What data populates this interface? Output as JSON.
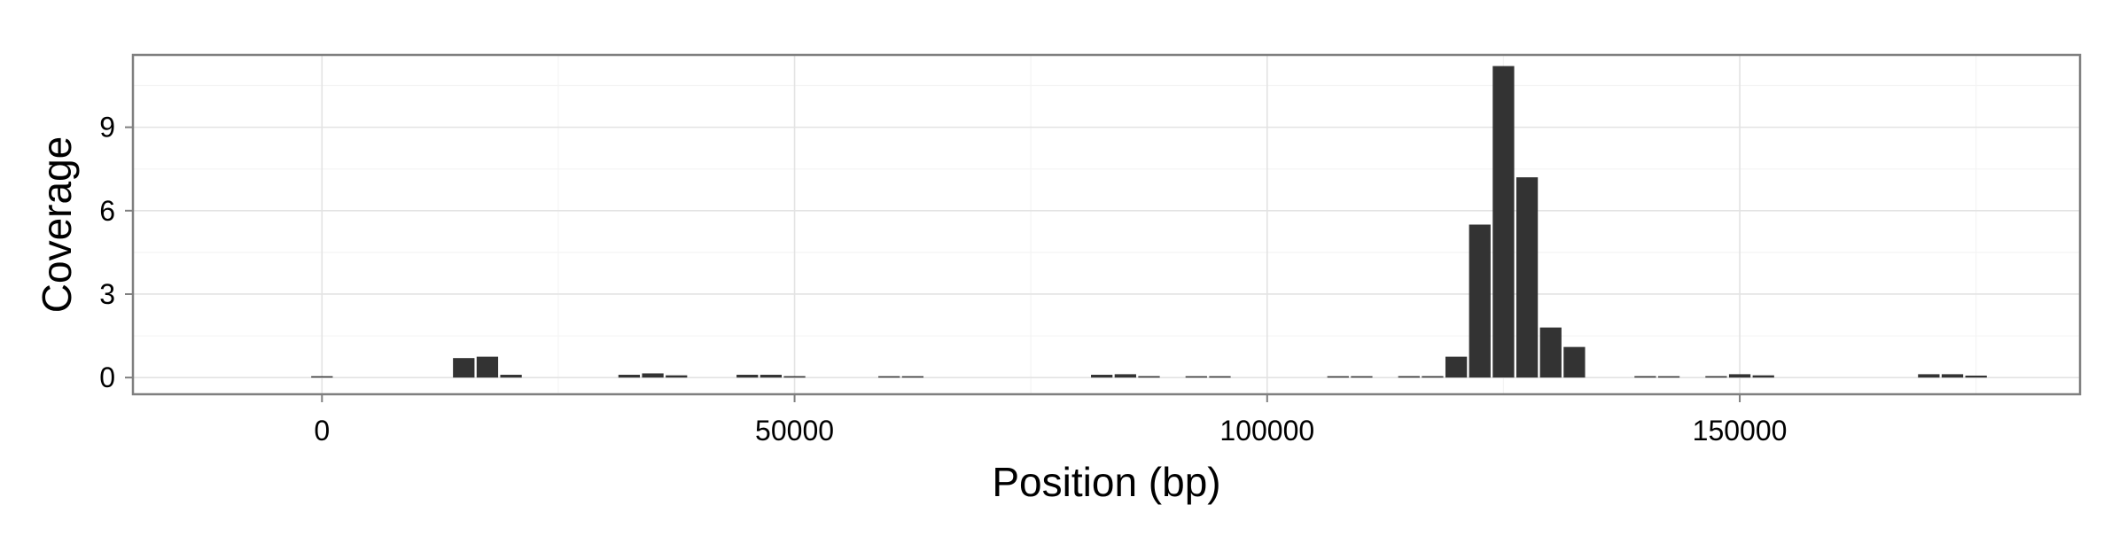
{
  "chart_data": {
    "type": "bar",
    "xlabel": "Position (bp)",
    "ylabel": "Coverage",
    "xlim": [
      -20000,
      186000
    ],
    "ylim": [
      -0.6,
      11.6
    ],
    "x_ticks": [
      0,
      50000,
      100000,
      150000
    ],
    "x_tick_labels": [
      "0",
      "50000",
      "100000",
      "150000"
    ],
    "y_ticks": [
      0,
      3,
      6,
      9
    ],
    "y_tick_labels": [
      "0",
      "3",
      "6",
      "9"
    ],
    "grid": true,
    "background": "#ffffff",
    "bar_color": "#333333",
    "bin_width": 2500,
    "x": [
      0,
      15000,
      17500,
      20000,
      32500,
      35000,
      37500,
      45000,
      47500,
      50000,
      60000,
      62500,
      82500,
      85000,
      87500,
      92500,
      95000,
      107500,
      110000,
      115000,
      117500,
      120000,
      122500,
      125000,
      127500,
      130000,
      132500,
      140000,
      142500,
      147500,
      150000,
      152500,
      170000,
      172500,
      175000
    ],
    "values": [
      0.03,
      0.7,
      0.75,
      0.1,
      0.1,
      0.15,
      0.08,
      0.1,
      0.1,
      0.05,
      0.04,
      0.04,
      0.1,
      0.12,
      0.05,
      0.04,
      0.04,
      0.04,
      0.04,
      0.05,
      0.05,
      0.75,
      5.5,
      11.2,
      7.2,
      1.8,
      1.1,
      0.05,
      0.04,
      0.05,
      0.12,
      0.08,
      0.12,
      0.12,
      0.07
    ]
  }
}
